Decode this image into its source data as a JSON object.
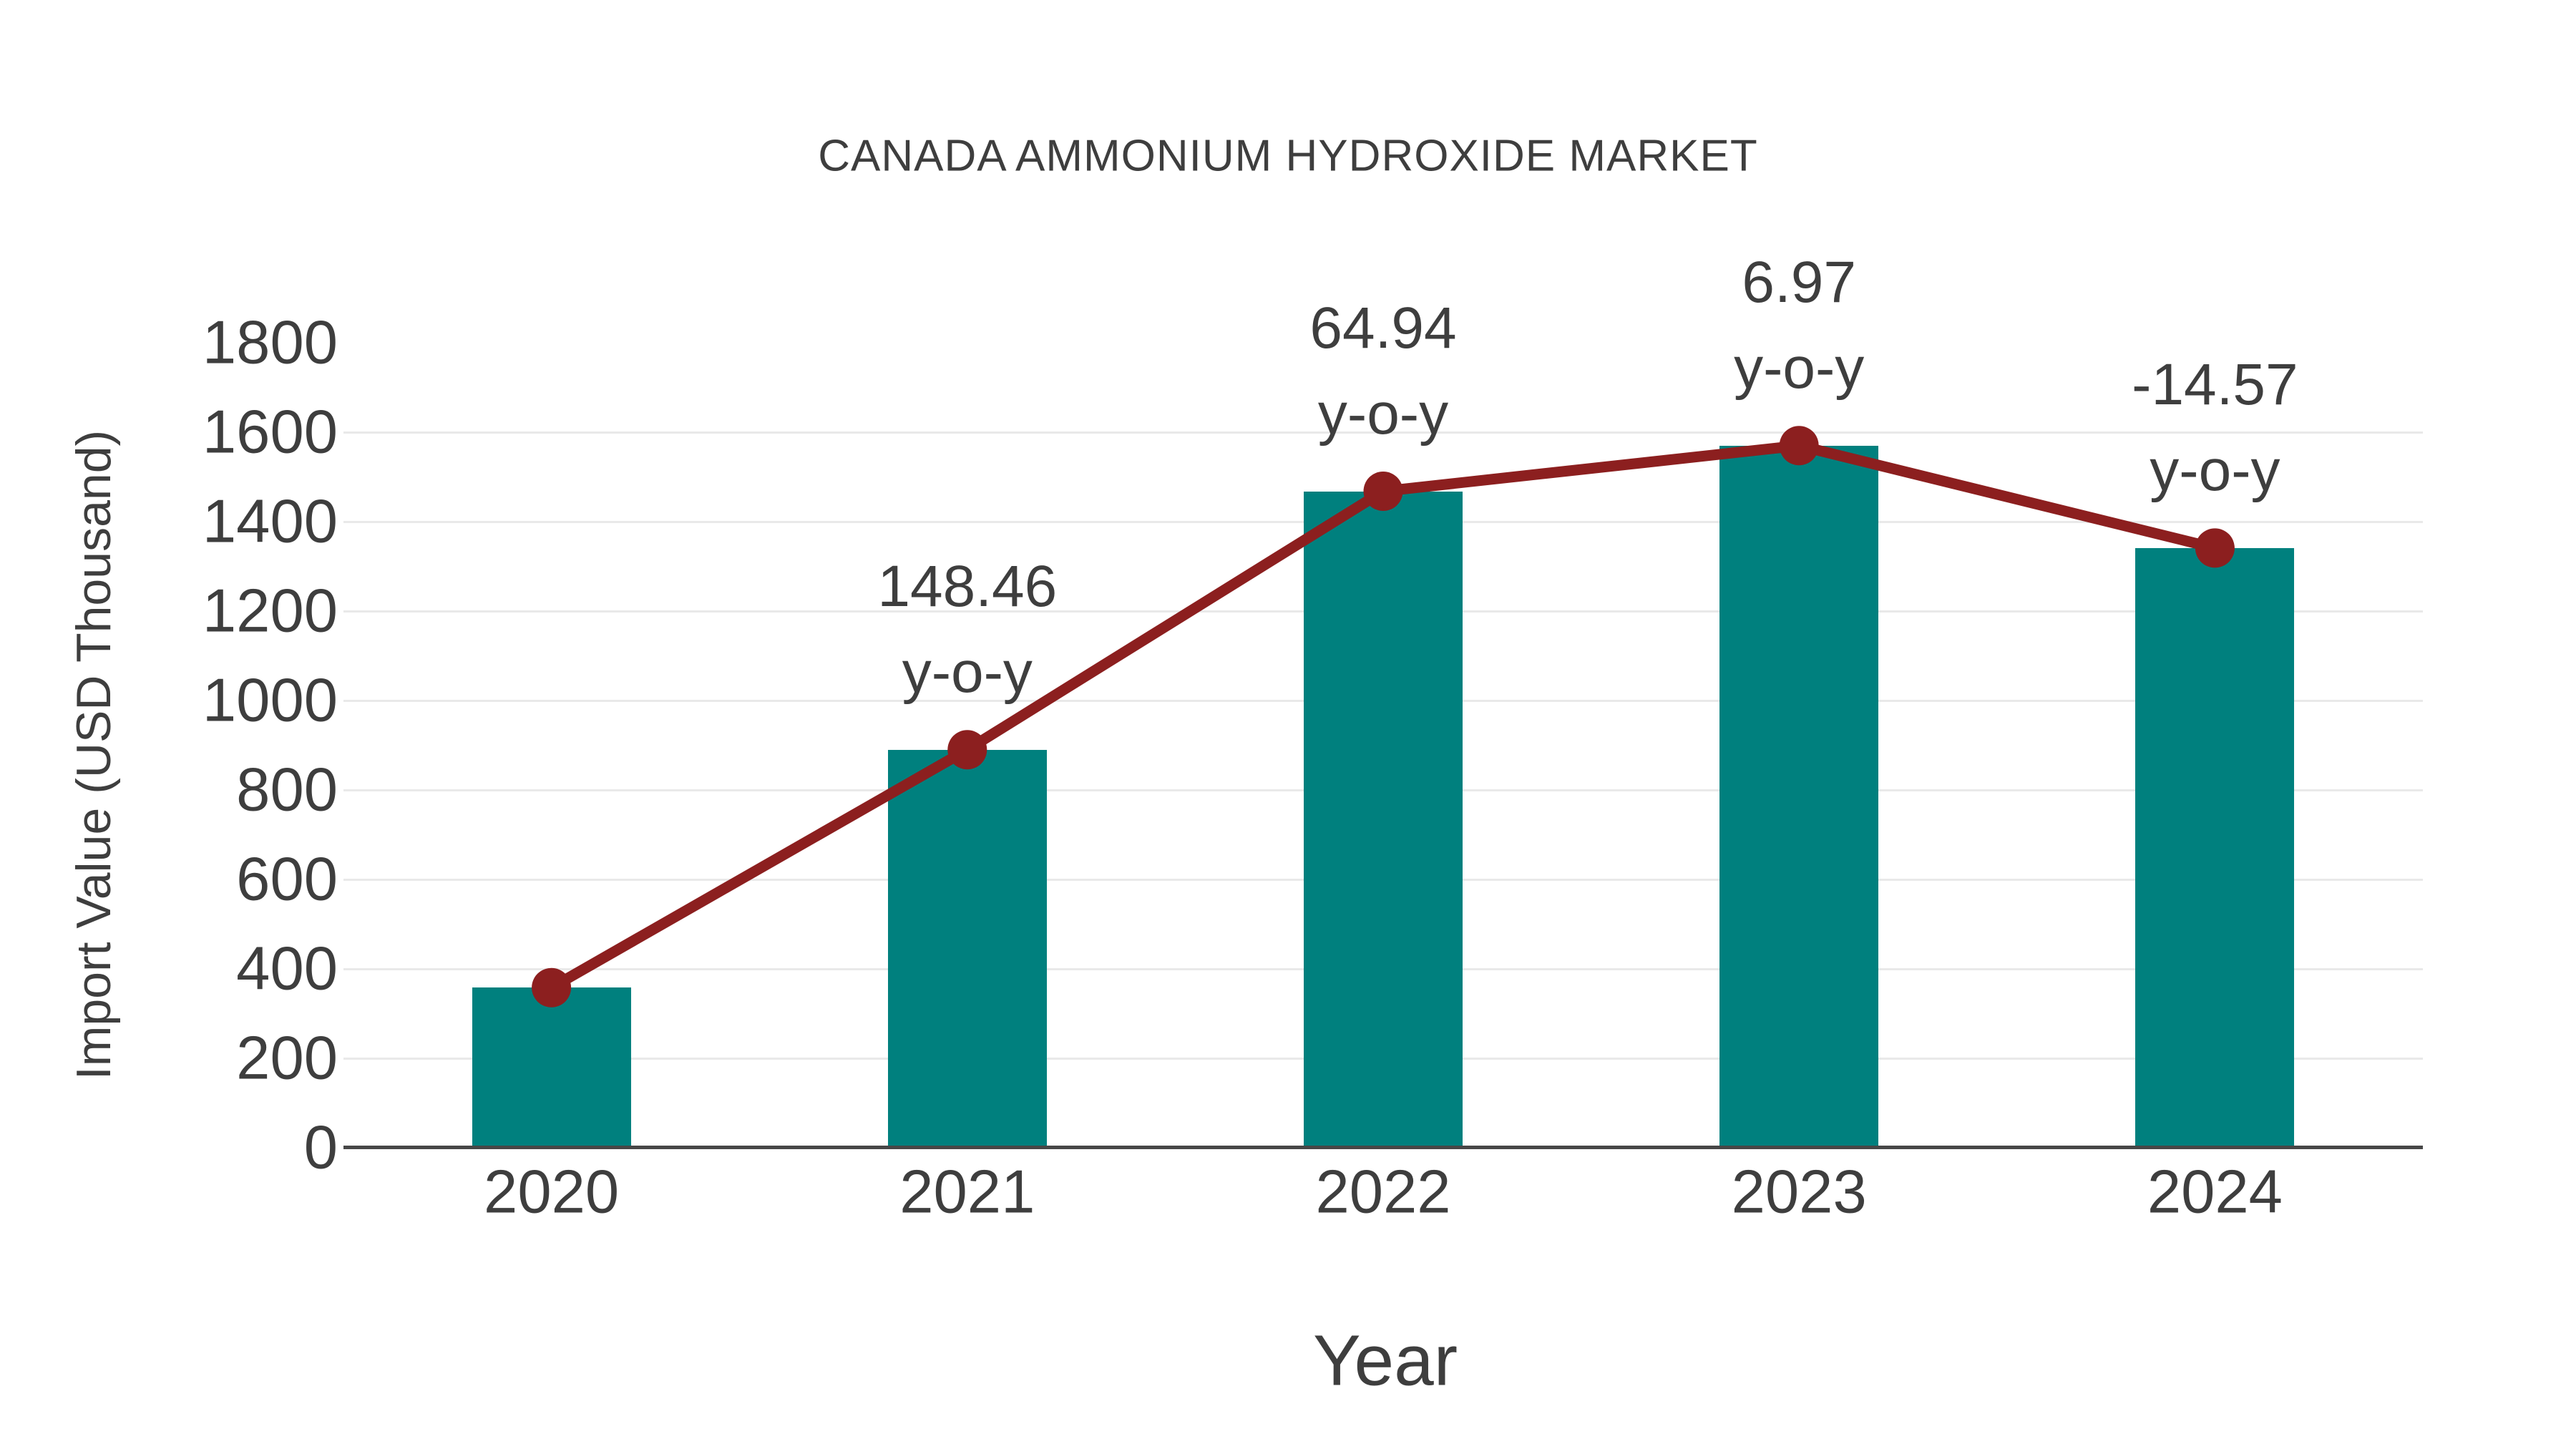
{
  "background": "#FFFFFF",
  "text_color": "#3E3E3E",
  "axis_line_color": "#474747",
  "gridline_color": "#E9E9E9",
  "chart_data": {
    "type": "bar",
    "title": "CANADA AMMONIUM HYDROXIDE MARKET",
    "xlabel": "Year",
    "ylabel": "Import Value (USD Thousand)",
    "categories": [
      "2020",
      "2021",
      "2022",
      "2023",
      "2024"
    ],
    "series": [
      {
        "name": "Import Value",
        "type": "bar",
        "color": "#00807E",
        "values": [
          358,
          890,
          1468,
          1570,
          1341
        ]
      },
      {
        "name": "y-o-y trend",
        "type": "line",
        "color": "#8C1F1F",
        "values": [
          358,
          890,
          1468,
          1570,
          1341
        ]
      }
    ],
    "annotations": [
      {
        "category": "2021",
        "value": "148.46",
        "unit": "y-o-y"
      },
      {
        "category": "2022",
        "value": "64.94",
        "unit": "y-o-y"
      },
      {
        "category": "2023",
        "value": "6.97",
        "unit": "y-o-y"
      },
      {
        "category": "2024",
        "value": "-14.57",
        "unit": "y-o-y"
      }
    ],
    "ylim": [
      0,
      1800
    ],
    "yticks": [
      0,
      200,
      400,
      600,
      800,
      1000,
      1200,
      1400,
      1600,
      1800
    ],
    "gridlines": [
      200,
      400,
      600,
      800,
      1000,
      1200,
      1400,
      1600
    ],
    "grid": "horizontal",
    "legend": "none"
  }
}
